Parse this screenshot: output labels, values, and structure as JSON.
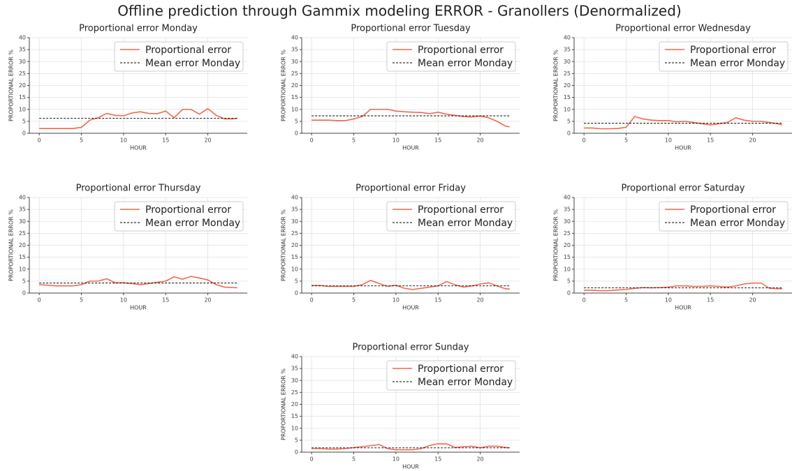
{
  "title": "Offline prediction through Gammix modeling ERROR - Granollers (Denormalized)",
  "chart_data": [
    {
      "type": "line",
      "title": "Proportional error Monday",
      "x_label": "HOUR",
      "y_label": "PROPORTIONAL ERROR %",
      "x": [
        0,
        1,
        2,
        3,
        4,
        5,
        6,
        7,
        8,
        9,
        10,
        11,
        12,
        13,
        14,
        15,
        16,
        17,
        18,
        19,
        20,
        21,
        22,
        23,
        23.5
      ],
      "series": [
        {
          "name": "Proportional error",
          "color": "#f4674d",
          "style": "solid",
          "values": [
            2,
            2,
            2,
            2,
            2,
            2.5,
            5.5,
            6.5,
            8.3,
            7.5,
            7.3,
            8.5,
            9,
            8.3,
            8.2,
            9.3,
            6.5,
            10,
            10,
            8,
            10.3,
            7.5,
            6,
            6,
            6.3
          ]
        },
        {
          "name": "Mean error Monday",
          "color": "#000000",
          "style": "dashed",
          "values": [
            6.3,
            6.3,
            6.3,
            6.3,
            6.3,
            6.3,
            6.3,
            6.3,
            6.3,
            6.3,
            6.3,
            6.3,
            6.3,
            6.3,
            6.3,
            6.3,
            6.3,
            6.3,
            6.3,
            6.3,
            6.3,
            6.3,
            6.3,
            6.3,
            6.3
          ]
        }
      ],
      "xlim": [
        -1.175,
        24.675
      ],
      "xticks": [
        0,
        5,
        10,
        15,
        20
      ],
      "ylim": [
        0,
        40
      ],
      "yticks": [
        0,
        5,
        10,
        15,
        20,
        25,
        30,
        35,
        40
      ],
      "grid": true,
      "legend": "upper right"
    },
    {
      "type": "line",
      "title": "Proportional error Tuesday",
      "x_label": "HOUR",
      "y_label": "PROPORTIONAL ERROR %",
      "x": [
        0,
        1,
        2,
        3,
        4,
        5,
        6,
        7,
        8,
        9,
        10,
        11,
        12,
        13,
        14,
        15,
        16,
        17,
        18,
        19,
        20,
        21,
        22,
        23,
        23.5
      ],
      "series": [
        {
          "name": "Proportional error",
          "color": "#f4674d",
          "style": "solid",
          "values": [
            5.5,
            5.5,
            5.5,
            5.3,
            5.3,
            6,
            7,
            10,
            10,
            10,
            9.3,
            9,
            8.8,
            8.7,
            8.2,
            8.8,
            8,
            7.5,
            7,
            6.8,
            7.2,
            6.5,
            5,
            3,
            2.7
          ]
        },
        {
          "name": "Mean error Monday",
          "color": "#000000",
          "style": "dashed",
          "values": [
            7.3,
            7.3,
            7.3,
            7.3,
            7.3,
            7.3,
            7.3,
            7.3,
            7.3,
            7.3,
            7.3,
            7.3,
            7.3,
            7.3,
            7.3,
            7.3,
            7.3,
            7.3,
            7.3,
            7.3,
            7.3,
            7.3,
            7.3,
            7.3,
            7.3
          ]
        }
      ],
      "xlim": [
        -1.175,
        24.675
      ],
      "xticks": [
        0,
        5,
        10,
        15,
        20
      ],
      "ylim": [
        0,
        40
      ],
      "yticks": [
        0,
        5,
        10,
        15,
        20,
        25,
        30,
        35,
        40
      ],
      "grid": true,
      "legend": "upper right"
    },
    {
      "type": "line",
      "title": "Proportional error Wednesday",
      "x_label": "HOUR",
      "y_label": "PROPORTIONAL ERROR %",
      "x": [
        0,
        1,
        2,
        3,
        4,
        5,
        6,
        7,
        8,
        9,
        10,
        11,
        12,
        13,
        14,
        15,
        16,
        17,
        18,
        19,
        20,
        21,
        22,
        23,
        23.5
      ],
      "series": [
        {
          "name": "Proportional error",
          "color": "#f4674d",
          "style": "solid",
          "values": [
            2.2,
            2.2,
            1.9,
            1.9,
            2,
            2.5,
            7,
            6,
            5.5,
            5.3,
            5.3,
            4.8,
            5,
            4.5,
            4,
            3.5,
            4,
            4.5,
            6.5,
            5.5,
            5,
            5,
            4.5,
            4,
            3.5
          ]
        },
        {
          "name": "Mean error Monday",
          "color": "#000000",
          "style": "dashed",
          "values": [
            4.2,
            4.2,
            4.2,
            4.2,
            4.2,
            4.2,
            4.2,
            4.2,
            4.2,
            4.2,
            4.2,
            4.2,
            4.2,
            4.2,
            4.2,
            4.2,
            4.2,
            4.2,
            4.2,
            4.2,
            4.2,
            4.2,
            4.2,
            4.2,
            4.2
          ]
        }
      ],
      "xlim": [
        -1.175,
        24.675
      ],
      "xticks": [
        0,
        5,
        10,
        15,
        20
      ],
      "ylim": [
        0,
        40
      ],
      "yticks": [
        0,
        5,
        10,
        15,
        20,
        25,
        30,
        35,
        40
      ],
      "grid": true,
      "legend": "upper right"
    },
    {
      "type": "line",
      "title": "Proportional error Thursday",
      "x_label": "HOUR",
      "y_label": "PROPORTIONAL ERROR %",
      "x": [
        0,
        1,
        2,
        3,
        4,
        5,
        6,
        7,
        8,
        9,
        10,
        11,
        12,
        13,
        14,
        15,
        16,
        17,
        18,
        19,
        20,
        21,
        22,
        23,
        23.5
      ],
      "series": [
        {
          "name": "Proportional error",
          "color": "#f4674d",
          "style": "solid",
          "values": [
            3.5,
            3.3,
            3,
            3,
            3,
            3.5,
            5,
            5,
            6,
            4.3,
            4.3,
            4,
            3.5,
            4,
            4.5,
            5,
            6.8,
            5.8,
            7,
            6.3,
            5.5,
            3.5,
            2.5,
            2.3,
            2.2
          ]
        },
        {
          "name": "Mean error Monday",
          "color": "#000000",
          "style": "dashed",
          "values": [
            4.2,
            4.2,
            4.2,
            4.2,
            4.2,
            4.2,
            4.2,
            4.2,
            4.2,
            4.2,
            4.2,
            4.2,
            4.2,
            4.2,
            4.2,
            4.2,
            4.2,
            4.2,
            4.2,
            4.2,
            4.2,
            4.2,
            4.2,
            4.2,
            4.2
          ]
        }
      ],
      "xlim": [
        -1.175,
        24.675
      ],
      "xticks": [
        0,
        5,
        10,
        15,
        20
      ],
      "ylim": [
        0,
        40
      ],
      "yticks": [
        0,
        5,
        10,
        15,
        20,
        25,
        30,
        35,
        40
      ],
      "grid": true,
      "legend": "upper right"
    },
    {
      "type": "line",
      "title": "Proportional error Friday",
      "x_label": "HOUR",
      "y_label": "PROPORTIONAL ERROR %",
      "x": [
        0,
        1,
        2,
        3,
        4,
        5,
        6,
        7,
        8,
        9,
        10,
        11,
        12,
        13,
        14,
        15,
        16,
        17,
        18,
        19,
        20,
        21,
        22,
        23,
        23.5
      ],
      "series": [
        {
          "name": "Proportional error",
          "color": "#f4674d",
          "style": "solid",
          "values": [
            3.2,
            3.2,
            2.8,
            2.8,
            2.8,
            2.8,
            3.5,
            5.3,
            4,
            2.8,
            3.3,
            2,
            1.5,
            2,
            2.5,
            3,
            4.8,
            3.5,
            2.5,
            3,
            3.8,
            4.3,
            3,
            1.8,
            1.7
          ]
        },
        {
          "name": "Mean error Monday",
          "color": "#000000",
          "style": "dashed",
          "values": [
            3,
            3,
            3,
            3,
            3,
            3,
            3,
            3,
            3,
            3,
            3,
            3,
            3,
            3,
            3,
            3,
            3,
            3,
            3,
            3,
            3,
            3,
            3,
            3,
            3
          ]
        }
      ],
      "xlim": [
        -1.175,
        24.675
      ],
      "xticks": [
        0,
        5,
        10,
        15,
        20
      ],
      "ylim": [
        0,
        40
      ],
      "yticks": [
        0,
        5,
        10,
        15,
        20,
        25,
        30,
        35,
        40
      ],
      "grid": true,
      "legend": "upper right"
    },
    {
      "type": "line",
      "title": "Proportional error Saturday",
      "x_label": "HOUR",
      "y_label": "PROPORTIONAL ERROR %",
      "x": [
        0,
        1,
        2,
        3,
        4,
        5,
        6,
        7,
        8,
        9,
        10,
        11,
        12,
        13,
        14,
        15,
        16,
        17,
        18,
        19,
        20,
        21,
        22,
        23,
        23.5
      ],
      "series": [
        {
          "name": "Proportional error",
          "color": "#f4674d",
          "style": "solid",
          "values": [
            1.2,
            1.2,
            1,
            1,
            1.3,
            1.5,
            2,
            2.3,
            2.2,
            2.3,
            2.5,
            3,
            3,
            2.8,
            2.8,
            3,
            2.8,
            2.5,
            3,
            3.8,
            4.2,
            4.2,
            2,
            1.8,
            1.8
          ]
        },
        {
          "name": "Mean error Monday",
          "color": "#000000",
          "style": "dashed",
          "values": [
            2.2,
            2.2,
            2.2,
            2.2,
            2.2,
            2.2,
            2.2,
            2.2,
            2.2,
            2.2,
            2.2,
            2.2,
            2.2,
            2.2,
            2.2,
            2.2,
            2.2,
            2.2,
            2.2,
            2.2,
            2.2,
            2.2,
            2.2,
            2.2,
            2.2
          ]
        }
      ],
      "xlim": [
        -1.175,
        24.675
      ],
      "xticks": [
        0,
        5,
        10,
        15,
        20
      ],
      "ylim": [
        0,
        40
      ],
      "yticks": [
        0,
        5,
        10,
        15,
        20,
        25,
        30,
        35,
        40
      ],
      "grid": true,
      "legend": "upper right"
    },
    {
      "type": "line",
      "title": "Proportional error Sunday",
      "x_label": "HOUR",
      "y_label": "PROPORTIONAL ERROR %",
      "x": [
        0,
        1,
        2,
        3,
        4,
        5,
        6,
        7,
        8,
        9,
        10,
        11,
        12,
        13,
        14,
        15,
        16,
        17,
        18,
        19,
        20,
        21,
        22,
        23,
        23.5
      ],
      "series": [
        {
          "name": "Proportional error",
          "color": "#f4674d",
          "style": "solid",
          "values": [
            1.5,
            1.5,
            1.3,
            1.3,
            1.5,
            1.9,
            2.3,
            2.7,
            3.2,
            1.5,
            1,
            1,
            1,
            1.5,
            2.8,
            3.5,
            3.5,
            2,
            2.3,
            2.5,
            1.8,
            2.5,
            2.5,
            2,
            1.8
          ]
        },
        {
          "name": "Mean error Monday",
          "color": "#000000",
          "style": "dashed",
          "values": [
            1.8,
            1.8,
            1.8,
            1.8,
            1.8,
            1.8,
            1.8,
            1.8,
            1.8,
            1.8,
            1.8,
            1.8,
            1.8,
            1.8,
            1.8,
            1.8,
            1.8,
            1.8,
            1.8,
            1.8,
            1.8,
            1.8,
            1.8,
            1.8,
            1.8
          ]
        }
      ],
      "xlim": [
        -1.175,
        24.675
      ],
      "xticks": [
        0,
        5,
        10,
        15,
        20
      ],
      "ylim": [
        0,
        40
      ],
      "yticks": [
        0,
        5,
        10,
        15,
        20,
        25,
        30,
        35,
        40
      ],
      "grid": true,
      "legend": "upper right"
    }
  ]
}
